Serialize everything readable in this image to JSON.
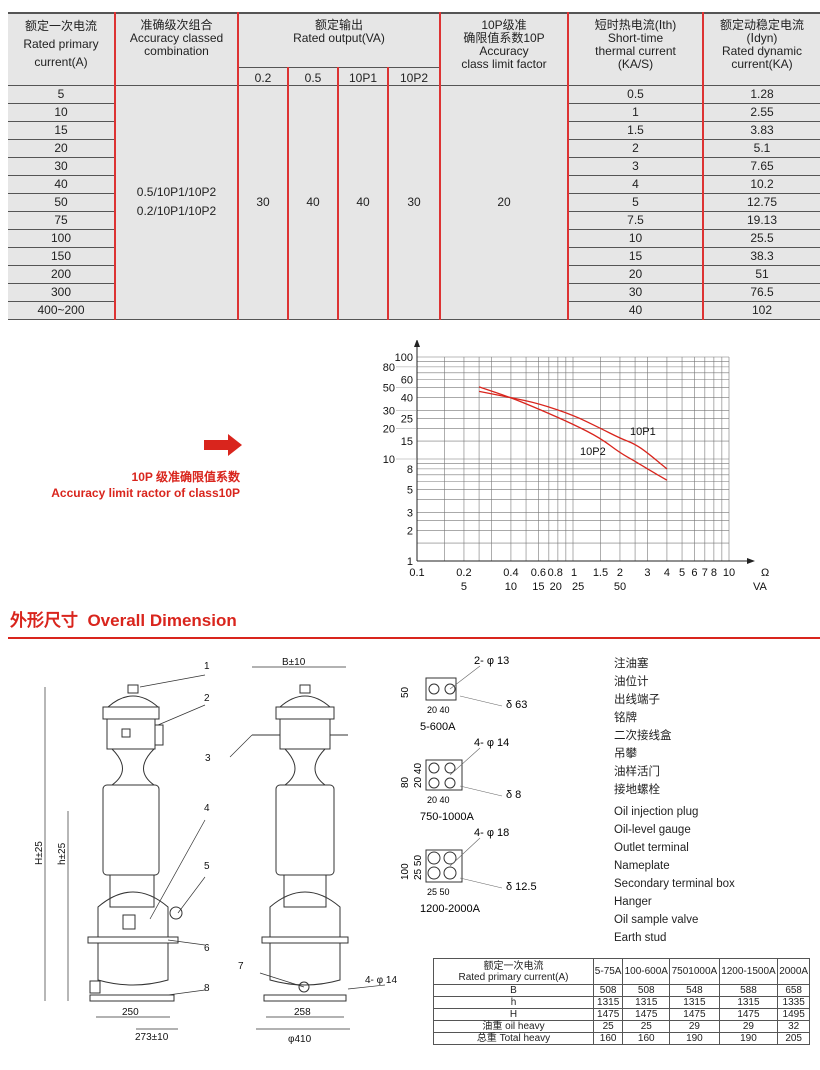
{
  "spec_table": {
    "headers": {
      "primary": [
        "额定一次电流",
        "Rated primary",
        "current(A)"
      ],
      "accuracy": [
        "准确级次组合",
        "Accuracy classed",
        "combination"
      ],
      "output": [
        "额定输出",
        "Rated output(VA)"
      ],
      "output_sub": [
        "0.2",
        "0.5",
        "10P1",
        "10P2"
      ],
      "limit": [
        "10P级准",
        "确限值系数10P",
        "Accuracy",
        "class limit factor"
      ],
      "thermal": [
        "短时热电流(Ⅰth)",
        "Short-time",
        "thermal current",
        "(KA/S)"
      ],
      "dynamic": [
        "额定动稳定电流",
        "(Ⅰdyn)",
        "Rated dynamic",
        "current(KA)"
      ]
    },
    "merged": {
      "accuracy": [
        "0.5/10P1/10P2",
        "0.2/10P1/10P2"
      ],
      "out_02": "30",
      "out_05": "40",
      "out_10p1": "40",
      "out_10p2": "30",
      "limit": "20"
    },
    "rows": [
      [
        "5",
        "0.5",
        "1.28"
      ],
      [
        "10",
        "1",
        "2.55"
      ],
      [
        "15",
        "1.5",
        "3.83"
      ],
      [
        "20",
        "2",
        "5.1"
      ],
      [
        "30",
        "3",
        "7.65"
      ],
      [
        "40",
        "4",
        "10.2"
      ],
      [
        "50",
        "5",
        "12.75"
      ],
      [
        "75",
        "7.5",
        "19.13"
      ],
      [
        "100",
        "10",
        "25.5"
      ],
      [
        "150",
        "15",
        "38.3"
      ],
      [
        "200",
        "20",
        "51"
      ],
      [
        "300",
        "30",
        "76.5"
      ],
      [
        "400~200",
        "40",
        "102"
      ]
    ]
  },
  "chart_caption": {
    "line1": "10P 级准确限值系数",
    "line2": "Accuracy limit ractor of class10P",
    "arrow_icon": "arrow-right-icon"
  },
  "chart_data": {
    "type": "line",
    "x_scale": "log",
    "y_scale": "log",
    "xlim": [
      0.1,
      10
    ],
    "ylim": [
      1,
      100
    ],
    "grid": true,
    "y_ticks": [
      "1",
      "2",
      "3",
      "5",
      "8",
      "10",
      "15",
      "20",
      "25",
      "30",
      "40",
      "50",
      "60",
      "80",
      "100"
    ],
    "x_ticks_ohm": [
      "0.1",
      "0.2",
      "0.4",
      "0.6",
      "0.8",
      "1",
      "1.5",
      "2",
      "3",
      "4",
      "5",
      "6",
      "7",
      "8",
      "10"
    ],
    "x_ticks_va": [
      "5",
      "10",
      "15",
      "20",
      "25",
      "50"
    ],
    "x_unit_ohm": "Ω",
    "x_unit_va": "VA",
    "series": [
      {
        "name": "10P1",
        "x": [
          0.25,
          0.4,
          0.6,
          1,
          1.5,
          2,
          2.5,
          3,
          4
        ],
        "y": [
          46,
          40,
          35,
          27,
          20,
          16,
          14,
          11.5,
          8
        ]
      },
      {
        "name": "10P2",
        "x": [
          0.25,
          0.4,
          0.6,
          1,
          1.5,
          2,
          2.5,
          3,
          4
        ],
        "y": [
          51,
          40,
          31,
          22,
          16,
          11.5,
          9.5,
          8,
          6.2
        ]
      }
    ],
    "color": "#d9251d"
  },
  "section_title": {
    "cn": "外形尺寸",
    "en": "Overall Dimension"
  },
  "drawing": {
    "callouts": [
      "1",
      "2",
      "3",
      "4",
      "5",
      "6",
      "7",
      "8"
    ],
    "dims": {
      "b": "B±10",
      "H": "H±25",
      "h": "h±25",
      "w250": "250",
      "w273": "273±10",
      "w258": "258",
      "d410": "φ410",
      "holes": "4- φ 14"
    },
    "terminals": [
      {
        "holes": "2- φ 13",
        "thk": "δ 63",
        "v": [
          "50"
        ],
        "h": "20 40",
        "range": "5-600A"
      },
      {
        "holes": "4- φ 14",
        "thk": "δ 8",
        "v": [
          "80",
          "20 40"
        ],
        "h": "20 40",
        "range": "750-1000A"
      },
      {
        "holes": "4- φ 18",
        "thk": "δ 12.5",
        "v": [
          "100",
          "25 50"
        ],
        "h": "25 50",
        "range": "1200-2000A"
      }
    ]
  },
  "legend": [
    "注油塞",
    "油位计",
    "出线端子",
    "铭牌",
    "二次接线盒",
    "吊攀",
    "油样活门",
    "接地螺栓",
    "Oil injection plug",
    "Oil-level gauge",
    "Outlet terminal",
    "Nameplate",
    "Secondary terminal box",
    "Hanger",
    "Oil sample valve",
    "Earth stud"
  ],
  "dims_table": {
    "header": [
      "额定一次电流",
      "Rated primary current(A)"
    ],
    "cols": [
      "5-75A",
      "100-600A",
      "7501000A",
      "1200-1500A",
      "2000A"
    ],
    "rows": [
      {
        "label": "B",
        "values": [
          "508",
          "508",
          "548",
          "588",
          "658"
        ]
      },
      {
        "label": "h",
        "values": [
          "1315",
          "1315",
          "1315",
          "1315",
          "1335"
        ]
      },
      {
        "label": "H",
        "values": [
          "1475",
          "1475",
          "1475",
          "1475",
          "1495"
        ]
      },
      {
        "label": "油重 oil heavy",
        "values": [
          "25",
          "25",
          "29",
          "29",
          "32"
        ]
      },
      {
        "label": "总重 Total heavy",
        "values": [
          "160",
          "160",
          "190",
          "190",
          "205"
        ]
      }
    ]
  }
}
